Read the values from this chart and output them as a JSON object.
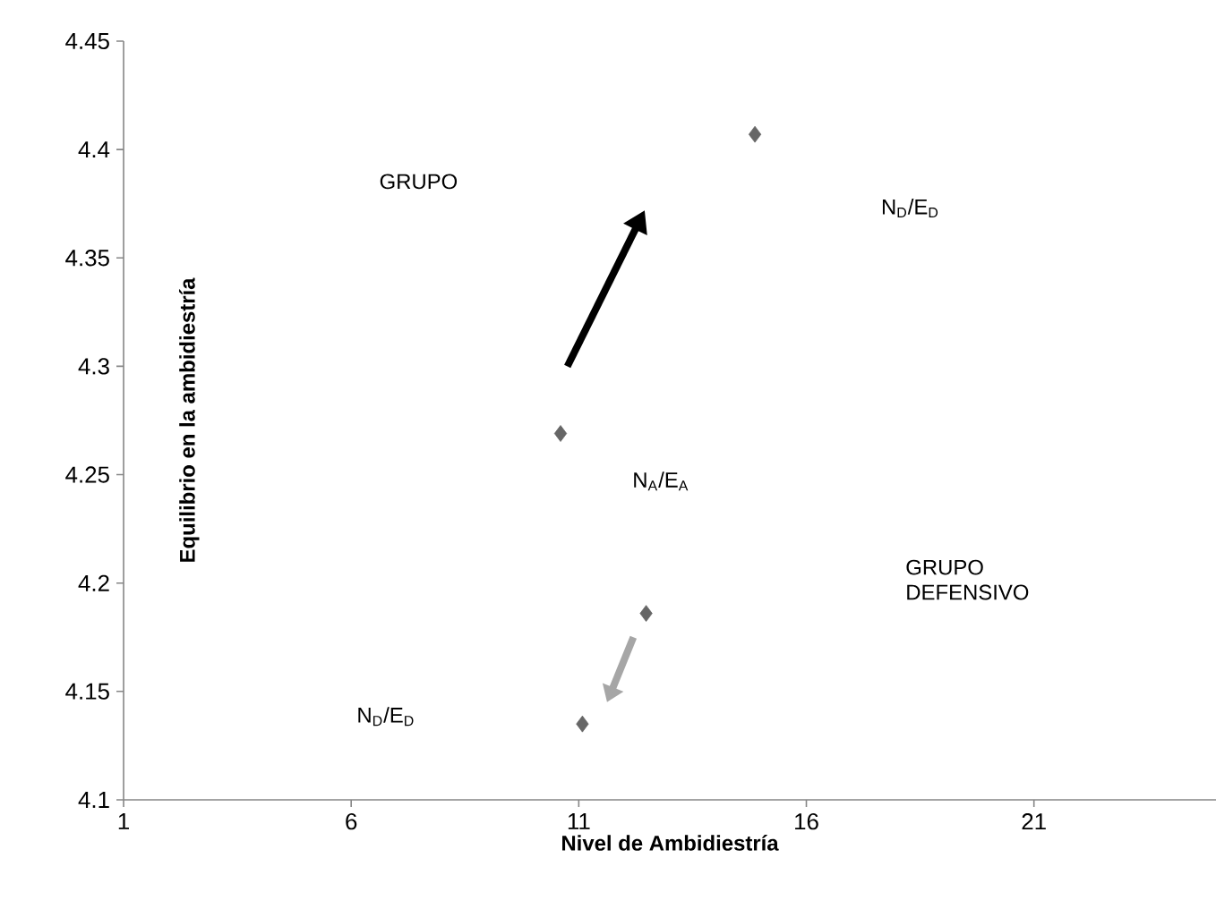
{
  "chart_data": {
    "type": "scatter",
    "xlabel": "Nivel de Ambidiestría",
    "ylabel": "Equilibrio en la ambidiestría",
    "x": [
      10.6,
      14.87,
      12.48,
      11.08
    ],
    "values": [
      4.269,
      4.407,
      4.186,
      4.135
    ],
    "color": "#666666",
    "marker": "diamond",
    "xlim": [
      1,
      25
    ],
    "xticks": [
      1,
      6,
      11,
      16,
      21
    ],
    "ylim": [
      4.1,
      4.45
    ],
    "yticks": [
      4.1,
      4.15,
      4.2,
      4.25,
      4.3,
      4.35,
      4.4,
      4.45
    ],
    "grid": false,
    "annotations": [
      "GRUPO",
      "N$_{D}$/E$_{D}$",
      "N$_{A}$/E$_{A}$",
      "GRUPO DEFENSIVO",
      "N$_{D}$/E$_{D}$"
    ]
  }
}
